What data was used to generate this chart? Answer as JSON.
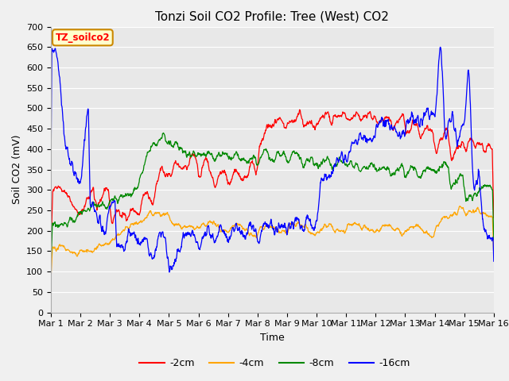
{
  "title": "Tonzi Soil CO2 Profile: Tree (West) CO2",
  "ylabel": "Soil CO2 (mV)",
  "xlabel": "Time",
  "watermark": "TZ_soilco2",
  "ylim": [
    0,
    700
  ],
  "yticks": [
    0,
    50,
    100,
    150,
    200,
    250,
    300,
    350,
    400,
    450,
    500,
    550,
    600,
    650,
    700
  ],
  "x_labels": [
    "Mar 1",
    "Mar 2",
    "Mar 3",
    "Mar 4",
    "Mar 5",
    "Mar 6",
    "Mar 7",
    "Mar 8",
    "Mar 9",
    "Mar 10",
    "Mar 11",
    "Mar 12",
    "Mar 13",
    "Mar 14",
    "Mar 15",
    "Mar 16"
  ],
  "colors": {
    "-2cm": "#ff0000",
    "-4cm": "#ffa500",
    "-8cm": "#008800",
    "-16cm": "#0000ff"
  },
  "legend_labels": [
    "-2cm",
    "-4cm",
    "-8cm",
    "-16cm"
  ],
  "background_color": "#e8e8e8",
  "fig_background": "#f0f0f0",
  "watermark_bg": "#ffffcc",
  "watermark_border": "#cc8800",
  "title_fontsize": 11,
  "axis_fontsize": 9,
  "tick_fontsize": 8
}
